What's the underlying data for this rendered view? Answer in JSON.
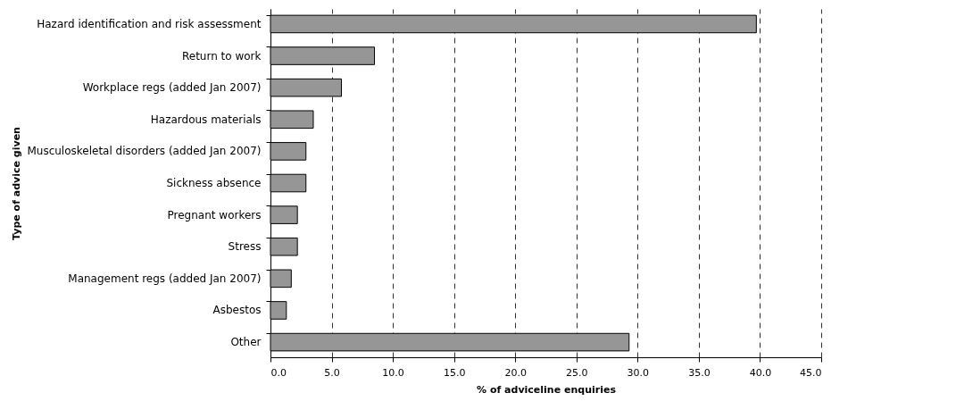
{
  "chart_data": {
    "type": "bar",
    "orientation": "horizontal",
    "xlabel": "% of adviceline enquiries",
    "ylabel": "Type of advice given",
    "categories": [
      "Hazard identification and risk assessment",
      "Return to work",
      "Workplace regs (added Jan 2007)",
      "Hazardous materials",
      "Musculoskeletal disorders (added Jan 2007)",
      "Sickness absence",
      "Pregnant workers",
      "Stress",
      "Management regs (added Jan 2007)",
      "Asbestos",
      "Other"
    ],
    "values": [
      39.7,
      8.5,
      5.8,
      3.5,
      2.9,
      2.9,
      2.2,
      2.2,
      1.7,
      1.3,
      29.3
    ],
    "color": "#969696",
    "xlim": [
      0,
      45
    ],
    "xticks": [
      {
        "value": 0,
        "label": "0.0"
      },
      {
        "value": 5,
        "label": "5.0"
      },
      {
        "value": 10,
        "label": "10.0"
      },
      {
        "value": 15,
        "label": "15.0"
      },
      {
        "value": 20,
        "label": "20.0"
      },
      {
        "value": 25,
        "label": "25.0"
      },
      {
        "value": 30,
        "label": "30.0"
      },
      {
        "value": 35,
        "label": "35.0"
      },
      {
        "value": 40,
        "label": "40.0"
      },
      {
        "value": 45,
        "label": "45.0"
      }
    ],
    "grid": "x",
    "line_style": "dashed"
  }
}
